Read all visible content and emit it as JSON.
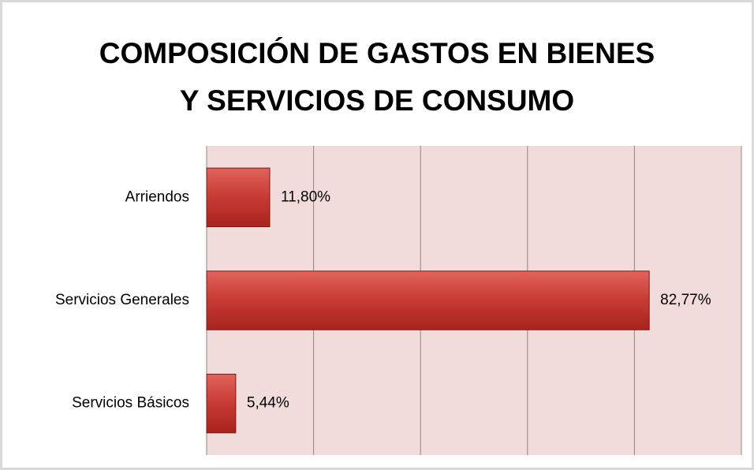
{
  "chart_data": {
    "type": "bar",
    "orientation": "horizontal",
    "title": [
      "COMPOSICIÓN DE GASTOS EN BIENES",
      "Y SERVICIOS DE CONSUMO"
    ],
    "categories": [
      "Arriendos",
      "Servicios Generales",
      "Servicios Básicos"
    ],
    "values": [
      11.8,
      82.77,
      5.44
    ],
    "value_labels": [
      "11,80%",
      "82,77%",
      "5,44%"
    ],
    "color": "#c0392f",
    "xlim": [
      0,
      100
    ],
    "xticks": [
      0,
      20,
      40,
      60,
      80,
      100
    ],
    "grid": true
  }
}
